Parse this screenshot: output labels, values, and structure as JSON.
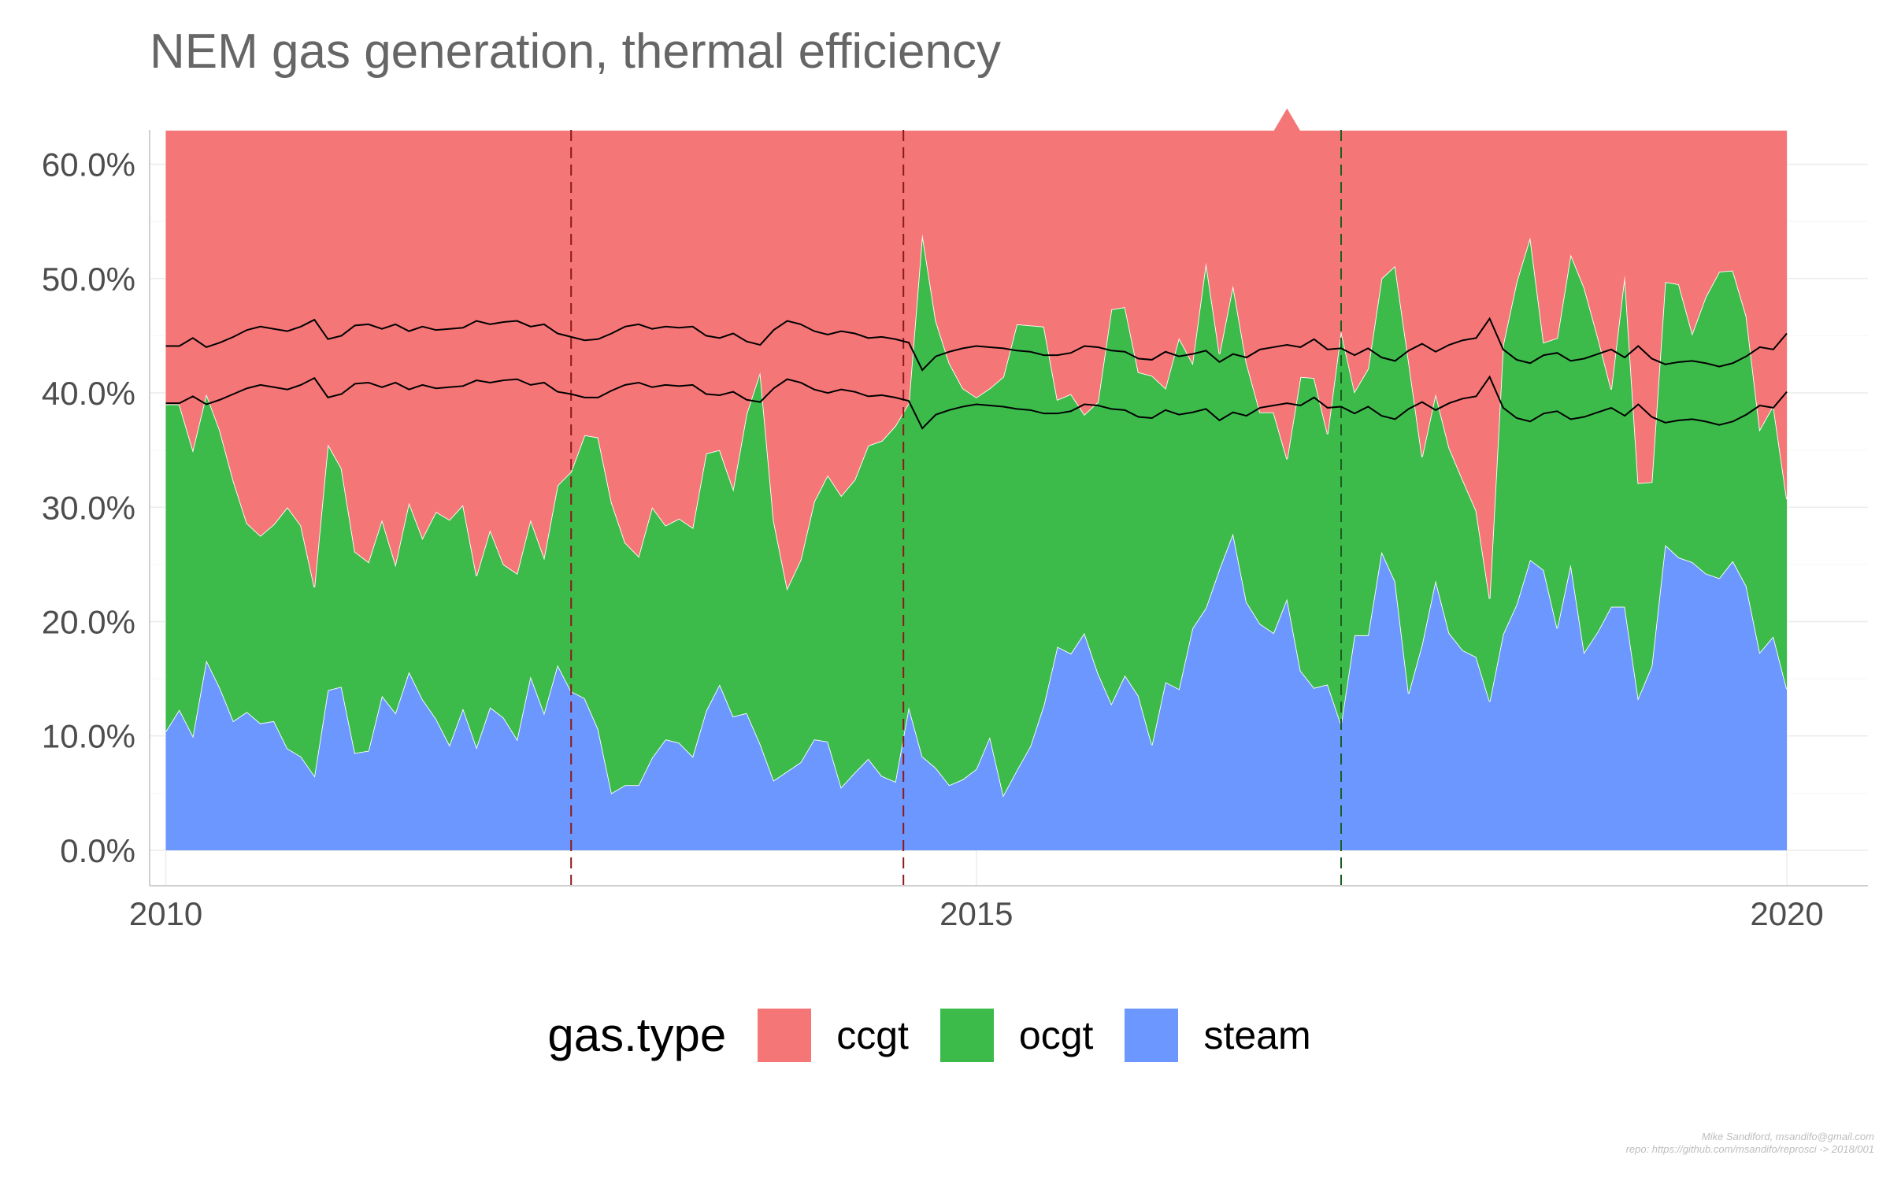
{
  "chart_data": {
    "type": "area",
    "title": "NEM gas generation, thermal efficiency",
    "xlabel": "",
    "ylabel": "",
    "x_start": 2010.0,
    "x_step": 0.08333,
    "ylim": [
      0,
      0.63
    ],
    "xlim": [
      2009.9,
      2020.5
    ],
    "yticks": [
      0,
      0.1,
      0.2,
      0.3,
      0.4,
      0.5,
      0.6
    ],
    "ytick_labels": [
      "0.0%",
      "10.0%",
      "20.0%",
      "30.0%",
      "40.0%",
      "50.0%",
      "60.0%"
    ],
    "xticks": [
      2010,
      2015,
      2020
    ],
    "xtick_labels": [
      "2010",
      "2015",
      "2020"
    ],
    "grid": true,
    "legend_position": "bottom",
    "legend_title": "gas.type",
    "stacked": true,
    "series": [
      {
        "name": "steam",
        "color": "#6b97ff",
        "values": [
          0.104,
          0.123,
          0.1,
          0.166,
          0.142,
          0.113,
          0.121,
          0.111,
          0.113,
          0.089,
          0.082,
          0.065,
          0.14,
          0.143,
          0.085,
          0.087,
          0.135,
          0.12,
          0.156,
          0.132,
          0.115,
          0.092,
          0.124,
          0.09,
          0.125,
          0.116,
          0.097,
          0.152,
          0.12,
          0.162,
          0.139,
          0.133,
          0.106,
          0.05,
          0.057,
          0.057,
          0.081,
          0.097,
          0.094,
          0.082,
          0.122,
          0.145,
          0.117,
          0.12,
          0.093,
          0.061,
          0.069,
          0.077,
          0.097,
          0.095,
          0.055,
          0.068,
          0.08,
          0.065,
          0.06,
          0.125,
          0.082,
          0.072,
          0.057,
          0.062,
          0.071,
          0.099,
          0.048,
          0.07,
          0.091,
          0.127,
          0.178,
          0.172,
          0.19,
          0.155,
          0.128,
          0.153,
          0.135,
          0.092,
          0.147,
          0.141,
          0.194,
          0.212,
          0.246,
          0.277,
          0.217,
          0.198,
          0.19,
          0.22,
          0.157,
          0.142,
          0.145,
          0.11,
          0.188,
          0.188,
          0.261,
          0.235,
          0.137,
          0.18,
          0.236,
          0.19,
          0.175,
          0.169,
          0.13,
          0.189,
          0.215,
          0.254,
          0.245,
          0.194,
          0.25,
          0.173,
          0.191,
          0.213,
          0.213,
          0.133,
          0.161,
          0.267,
          0.256,
          0.252,
          0.242,
          0.238,
          0.253,
          0.231,
          0.173,
          0.187,
          0.141
        ]
      },
      {
        "name": "ocgt",
        "color": "#3cbb4b",
        "values": [
          0.286,
          0.267,
          0.25,
          0.233,
          0.225,
          0.21,
          0.165,
          0.164,
          0.172,
          0.211,
          0.202,
          0.165,
          0.215,
          0.191,
          0.176,
          0.165,
          0.154,
          0.13,
          0.148,
          0.141,
          0.181,
          0.197,
          0.178,
          0.15,
          0.155,
          0.134,
          0.145,
          0.137,
          0.136,
          0.157,
          0.192,
          0.23,
          0.255,
          0.254,
          0.212,
          0.2,
          0.219,
          0.187,
          0.196,
          0.2,
          0.225,
          0.205,
          0.199,
          0.262,
          0.325,
          0.227,
          0.16,
          0.177,
          0.208,
          0.233,
          0.255,
          0.256,
          0.274,
          0.293,
          0.311,
          0.266,
          0.457,
          0.391,
          0.369,
          0.342,
          0.325,
          0.305,
          0.366,
          0.39,
          0.368,
          0.331,
          0.216,
          0.227,
          0.191,
          0.237,
          0.345,
          0.322,
          0.283,
          0.323,
          0.257,
          0.307,
          0.232,
          0.302,
          0.188,
          0.217,
          0.209,
          0.185,
          0.193,
          0.122,
          0.257,
          0.271,
          0.219,
          0.344,
          0.213,
          0.233,
          0.239,
          0.276,
          0.291,
          0.164,
          0.163,
          0.162,
          0.149,
          0.128,
          0.09,
          0.253,
          0.282,
          0.282,
          0.199,
          0.254,
          0.271,
          0.319,
          0.258,
          0.19,
          0.29,
          0.188,
          0.161,
          0.23,
          0.239,
          0.2,
          0.242,
          0.268,
          0.254,
          0.236,
          0.195,
          0.202,
          0.166
        ]
      },
      {
        "name": "ccgt",
        "color": "#f57676",
        "values": [
          0.24,
          0.24,
          0.28,
          0.231,
          0.263,
          0.307,
          0.344,
          0.355,
          0.345,
          0.33,
          0.346,
          0.4,
          0.275,
          0.296,
          0.369,
          0.378,
          0.341,
          0.38,
          0.326,
          0.357,
          0.334,
          0.341,
          0.328,
          0.39,
          0.35,
          0.38,
          0.388,
          0.341,
          0.374,
          0.311,
          0.299,
          0.267,
          0.269,
          0.326,
          0.361,
          0.373,
          0.33,
          0.346,
          0.34,
          0.348,
          0.283,
          0.28,
          0.314,
          0.248,
          0.212,
          0.342,
          0.401,
          0.376,
          0.325,
          0.302,
          0.32,
          0.306,
          0.276,
          0.272,
          0.259,
          0.239,
          0.091,
          0.167,
          0.204,
          0.226,
          0.234,
          0.226,
          0.216,
          0.17,
          0.171,
          0.172,
          0.236,
          0.231,
          0.249,
          0.238,
          0.157,
          0.155,
          0.212,
          0.215,
          0.226,
          0.182,
          0.204,
          0.116,
          0.196,
          0.136,
          0.204,
          0.247,
          0.247,
          0.308,
          0.216,
          0.217,
          0.266,
          0.176,
          0.229,
          0.209,
          0.13,
          0.119,
          0.202,
          0.286,
          0.231,
          0.278,
          0.306,
          0.333,
          0.41,
          0.188,
          0.133,
          0.094,
          0.186,
          0.182,
          0.109,
          0.138,
          0.181,
          0.227,
          0.127,
          0.309,
          0.308,
          0.133,
          0.135,
          0.178,
          0.146,
          0.124,
          0.123,
          0.163,
          0.262,
          0.241,
          0.323
        ]
      }
    ],
    "lines": [
      {
        "color": "#000000",
        "values": [
          0.441,
          0.441,
          0.448,
          0.44,
          0.444,
          0.449,
          0.455,
          0.458,
          0.456,
          0.454,
          0.458,
          0.464,
          0.447,
          0.45,
          0.459,
          0.46,
          0.456,
          0.46,
          0.454,
          0.458,
          0.455,
          0.456,
          0.457,
          0.463,
          0.46,
          0.462,
          0.463,
          0.458,
          0.46,
          0.452,
          0.449,
          0.446,
          0.447,
          0.452,
          0.458,
          0.46,
          0.456,
          0.458,
          0.457,
          0.458,
          0.45,
          0.448,
          0.452,
          0.445,
          0.442,
          0.455,
          0.463,
          0.46,
          0.454,
          0.451,
          0.454,
          0.452,
          0.448,
          0.449,
          0.447,
          0.444,
          0.42,
          0.432,
          0.436,
          0.439,
          0.441,
          0.44,
          0.439,
          0.437,
          0.436,
          0.433,
          0.433,
          0.435,
          0.441,
          0.44,
          0.437,
          0.436,
          0.43,
          0.429,
          0.436,
          0.432,
          0.434,
          0.437,
          0.427,
          0.434,
          0.431,
          0.438,
          0.44,
          0.442,
          0.44,
          0.447,
          0.438,
          0.439,
          0.433,
          0.439,
          0.431,
          0.428,
          0.437,
          0.443,
          0.436,
          0.442,
          0.446,
          0.448,
          0.465,
          0.438,
          0.429,
          0.426,
          0.433,
          0.435,
          0.428,
          0.43,
          0.434,
          0.438,
          0.431,
          0.441,
          0.43,
          0.425,
          0.427,
          0.428,
          0.426,
          0.423,
          0.426,
          0.432,
          0.44,
          0.438,
          0.452
        ]
      },
      {
        "color": "#000000",
        "values": [
          0.391,
          0.391,
          0.397,
          0.39,
          0.394,
          0.399,
          0.404,
          0.407,
          0.405,
          0.403,
          0.407,
          0.413,
          0.396,
          0.399,
          0.408,
          0.409,
          0.405,
          0.409,
          0.403,
          0.407,
          0.404,
          0.405,
          0.406,
          0.411,
          0.409,
          0.411,
          0.412,
          0.407,
          0.409,
          0.401,
          0.399,
          0.396,
          0.396,
          0.402,
          0.407,
          0.409,
          0.405,
          0.407,
          0.406,
          0.407,
          0.399,
          0.398,
          0.401,
          0.394,
          0.392,
          0.404,
          0.412,
          0.409,
          0.403,
          0.4,
          0.403,
          0.401,
          0.397,
          0.398,
          0.396,
          0.393,
          0.369,
          0.381,
          0.385,
          0.388,
          0.39,
          0.389,
          0.388,
          0.386,
          0.385,
          0.382,
          0.382,
          0.384,
          0.39,
          0.389,
          0.386,
          0.385,
          0.379,
          0.378,
          0.385,
          0.381,
          0.383,
          0.386,
          0.376,
          0.383,
          0.38,
          0.387,
          0.389,
          0.391,
          0.389,
          0.396,
          0.387,
          0.388,
          0.382,
          0.388,
          0.38,
          0.377,
          0.386,
          0.392,
          0.385,
          0.391,
          0.395,
          0.397,
          0.414,
          0.387,
          0.378,
          0.375,
          0.382,
          0.384,
          0.377,
          0.379,
          0.383,
          0.387,
          0.38,
          0.39,
          0.379,
          0.374,
          0.376,
          0.377,
          0.375,
          0.372,
          0.375,
          0.381,
          0.389,
          0.387,
          0.401
        ]
      }
    ],
    "vlines": [
      {
        "x": 2012.5,
        "color": "#8b1a1a",
        "style": "dashed"
      },
      {
        "x": 2014.55,
        "color": "#8b1a1a",
        "style": "dashed"
      },
      {
        "x": 2017.25,
        "color": "#1b5e20",
        "style": "dashed"
      }
    ],
    "legend_entries": [
      "ccgt",
      "ocgt",
      "steam"
    ]
  },
  "legend": {
    "title": "gas.type",
    "items": [
      {
        "label": "ccgt",
        "color": "#f57676"
      },
      {
        "label": "ocgt",
        "color": "#3cbb4b"
      },
      {
        "label": "steam",
        "color": "#6b97ff"
      }
    ]
  },
  "credit": {
    "line1": "Mike Sandiford, msandifo@gmail.com",
    "line2": "repo: https://github.com/msandifo/reprosci -> 2018/001"
  }
}
